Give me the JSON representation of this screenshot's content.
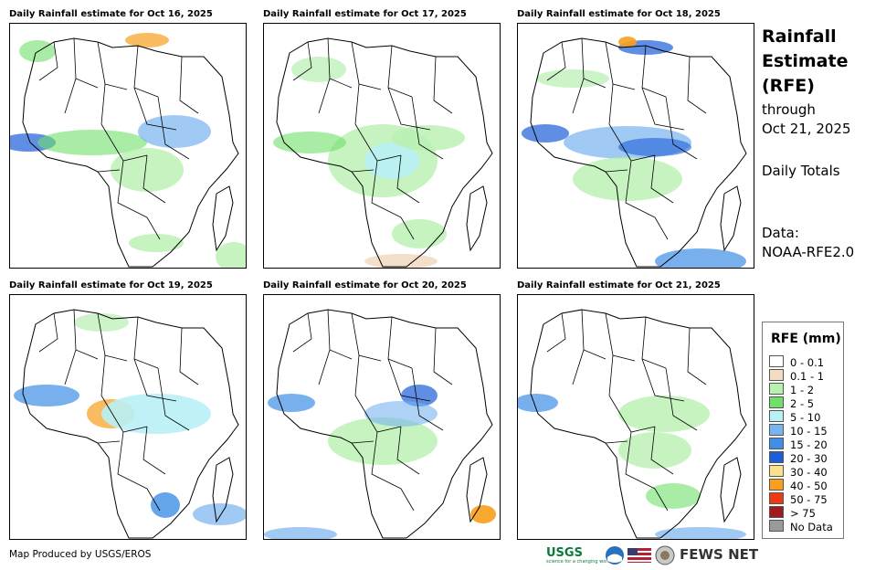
{
  "panels": [
    {
      "title": "Daily Rainfall estimate for Oct 16, 2025"
    },
    {
      "title": "Daily Rainfall estimate for Oct 17, 2025"
    },
    {
      "title": "Daily Rainfall estimate for Oct 18, 2025"
    },
    {
      "title": "Daily Rainfall estimate for Oct 19, 2025"
    },
    {
      "title": "Daily Rainfall estimate for Oct 20, 2025"
    },
    {
      "title": "Daily Rainfall estimate for Oct 21, 2025"
    }
  ],
  "sidebar": {
    "title_line1": "Rainfall",
    "title_line2": "Estimate",
    "title_line3": "(RFE)",
    "through_label": "through",
    "through_date": "Oct 21, 2025",
    "totals_label": "Daily Totals",
    "data_label": "Data:",
    "data_source": "NOAA-RFE2.0"
  },
  "legend": {
    "title": "RFE (mm)",
    "items": [
      {
        "label": "0 - 0.1",
        "color": "#ffffff"
      },
      {
        "label": "0.1 - 1",
        "color": "#f3dcc4"
      },
      {
        "label": "1 - 2",
        "color": "#b8f0b0"
      },
      {
        "label": "2 - 5",
        "color": "#6fe06a"
      },
      {
        "label": "5 - 10",
        "color": "#b8f0f5"
      },
      {
        "label": "10 - 15",
        "color": "#78b4ee"
      },
      {
        "label": "15 - 20",
        "color": "#3f8fe6"
      },
      {
        "label": "20 - 30",
        "color": "#1c5ed8"
      },
      {
        "label": "30 - 40",
        "color": "#fce08a"
      },
      {
        "label": "40 - 50",
        "color": "#f8a01c"
      },
      {
        "label": "50 - 75",
        "color": "#ee3a10"
      },
      {
        "label": "> 75",
        "color": "#a01b1b"
      },
      {
        "label": "No Data",
        "color": "#9a9a9a"
      }
    ]
  },
  "footer": {
    "credit": "Map Produced by USGS/EROS",
    "usgs_logo": "USGS",
    "usgs_tagline": "science for a changing world",
    "fews_logo": "FEWS NET"
  }
}
